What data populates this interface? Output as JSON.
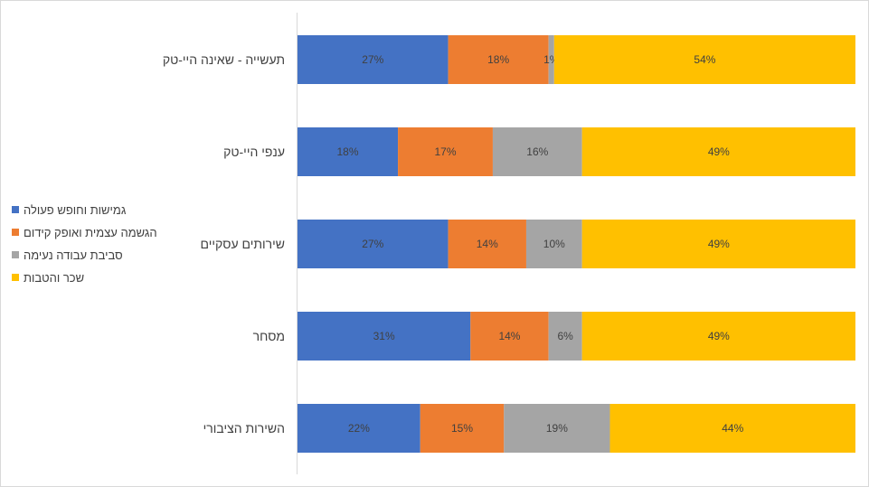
{
  "chart_data": {
    "type": "bar",
    "orientation": "horizontal",
    "stacked": "100%",
    "categories": [
      "תעשייה - שאינה היי-טק",
      "ענפי היי-טק",
      "שירותים עסקיים",
      "מסחר",
      "השירות הציבורי"
    ],
    "series": [
      {
        "name": "גמישות וחופש פעולה",
        "color": "#4472C4",
        "values": [
          27,
          18,
          27,
          31,
          22
        ],
        "labels": [
          "27%",
          "18%",
          "27%",
          "31%",
          "22%"
        ]
      },
      {
        "name": "הגשמה עצמית ואופק קידום",
        "color": "#ED7D31",
        "values": [
          18,
          17,
          14,
          14,
          15
        ],
        "labels": [
          "18%",
          "17%",
          "14%",
          "14%",
          "15%"
        ]
      },
      {
        "name": "סביבת עבודה נעימה",
        "color": "#A5A5A5",
        "values": [
          1,
          16,
          10,
          6,
          19
        ],
        "labels": [
          "1%",
          "16%",
          "10%",
          "6%",
          "19%"
        ]
      },
      {
        "name": "שכר והטבות",
        "color": "#FFC000",
        "values": [
          54,
          49,
          49,
          49,
          44
        ],
        "labels": [
          "54%",
          "49%",
          "49%",
          "49%",
          "44%"
        ]
      }
    ],
    "xlim": [
      0,
      100
    ],
    "grid": false,
    "legend": "left"
  }
}
